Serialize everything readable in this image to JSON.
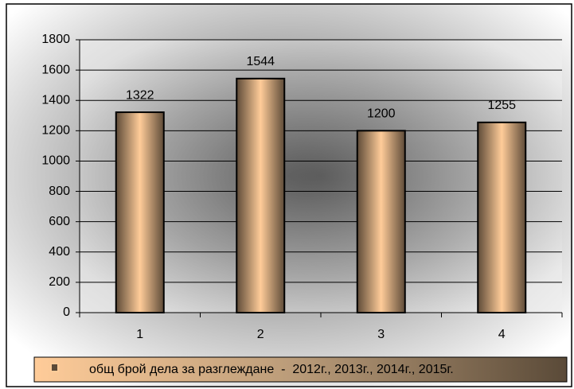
{
  "chart_data": {
    "type": "bar",
    "categories": [
      "1",
      "2",
      "3",
      "4"
    ],
    "series": [
      {
        "name": "общ брой дела за разглеждане  -  2012г., 2013г., 2014г., 2015г.",
        "color": "#ffcc99",
        "values": [
          1322,
          1544,
          1200,
          1255
        ]
      }
    ],
    "ylim": [
      0,
      1800
    ],
    "yticks": [
      0,
      200,
      400,
      600,
      800,
      1000,
      1200,
      1400,
      1600,
      1800
    ],
    "grid": true,
    "legend": "bottom"
  }
}
